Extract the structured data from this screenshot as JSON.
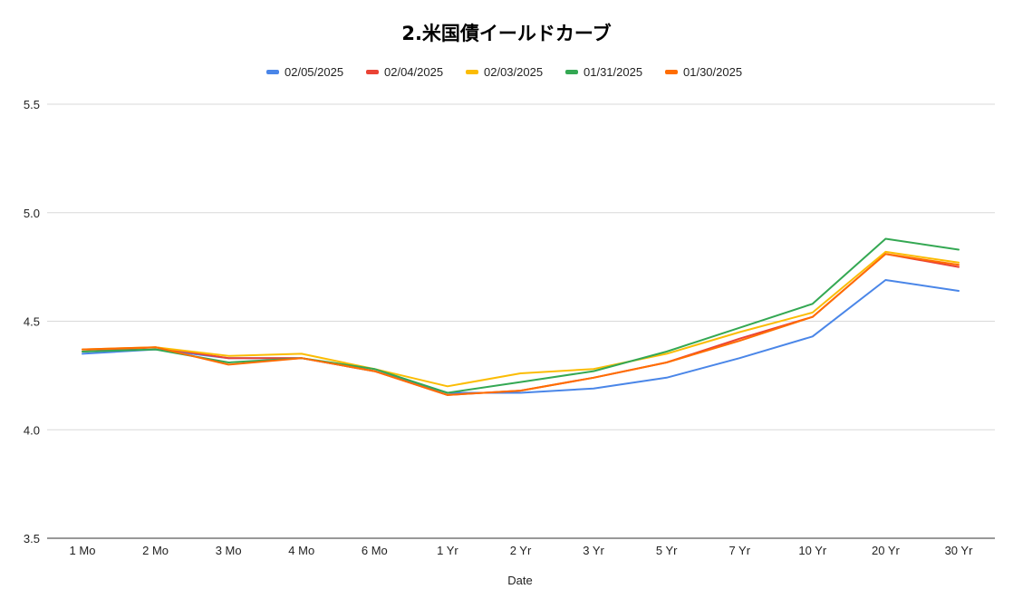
{
  "chart_data": {
    "type": "line",
    "title": "2.米国債イールドカーブ",
    "xlabel": "Date",
    "ylabel": "",
    "categories": [
      "1 Mo",
      "2 Mo",
      "3 Mo",
      "4 Mo",
      "6 Mo",
      "1 Yr",
      "2 Yr",
      "3 Yr",
      "5 Yr",
      "7 Yr",
      "10 Yr",
      "20 Yr",
      "30 Yr"
    ],
    "ylim": [
      3.5,
      5.5
    ],
    "yticks": [
      "3.5",
      "4.0",
      "4.5",
      "5.0",
      "5.5"
    ],
    "legend_position": "top",
    "grid": true,
    "series": [
      {
        "name": "02/05/2025",
        "color": "#4a86e8",
        "values": [
          4.35,
          4.37,
          4.33,
          4.33,
          4.27,
          4.17,
          4.17,
          4.19,
          4.24,
          4.33,
          4.43,
          4.69,
          4.64
        ]
      },
      {
        "name": "02/04/2025",
        "color": "#ea4335",
        "values": [
          4.36,
          4.38,
          4.33,
          4.33,
          4.27,
          4.16,
          4.18,
          4.24,
          4.31,
          4.42,
          4.52,
          4.81,
          4.75
        ]
      },
      {
        "name": "02/03/2025",
        "color": "#fbbc04",
        "values": [
          4.37,
          4.38,
          4.34,
          4.35,
          4.28,
          4.2,
          4.26,
          4.28,
          4.35,
          4.45,
          4.54,
          4.82,
          4.77
        ]
      },
      {
        "name": "01/31/2025",
        "color": "#34a853",
        "values": [
          4.36,
          4.37,
          4.31,
          4.33,
          4.28,
          4.17,
          4.22,
          4.27,
          4.36,
          4.47,
          4.58,
          4.88,
          4.83
        ]
      },
      {
        "name": "01/30/2025",
        "color": "#ff6d01",
        "values": [
          4.37,
          4.38,
          4.3,
          4.33,
          4.27,
          4.16,
          4.18,
          4.24,
          4.31,
          4.41,
          4.52,
          4.81,
          4.76
        ]
      }
    ]
  }
}
